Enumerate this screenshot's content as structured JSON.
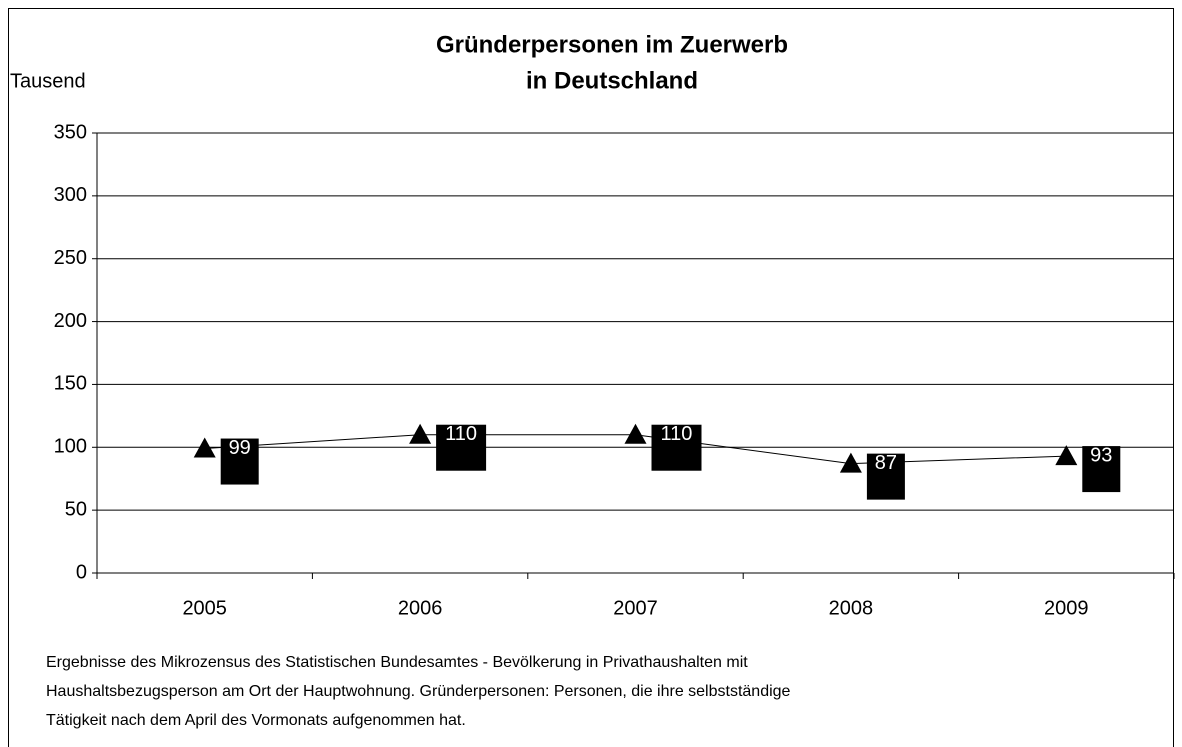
{
  "chart_data": {
    "type": "line",
    "title": [
      "Gründerpersonen im Zuerwerb",
      "in Deutschland"
    ],
    "y_label": "Tausend",
    "categories": [
      "2005",
      "2006",
      "2007",
      "2008",
      "2009"
    ],
    "series": [
      {
        "name": "Gründerpersonen im Zuerwerb",
        "color": "#000000",
        "values": [
          99,
          110,
          110,
          87,
          93
        ]
      }
    ],
    "ylim": [
      0,
      350
    ],
    "yticks": [
      0,
      50,
      100,
      150,
      200,
      250,
      300,
      350
    ],
    "grid": true,
    "footnote": [
      "Ergebnisse des Mikrozensus des Statistischen Bundesamtes - Bevölkerung in Privathaushalten mit",
      "Haushaltsbezugsperson am Ort der Hauptwohnung. Gründerpersonen: Personen, die ihre selbstständige",
      "Tätigkeit nach dem April des Vormonats aufgenommen hat."
    ]
  }
}
